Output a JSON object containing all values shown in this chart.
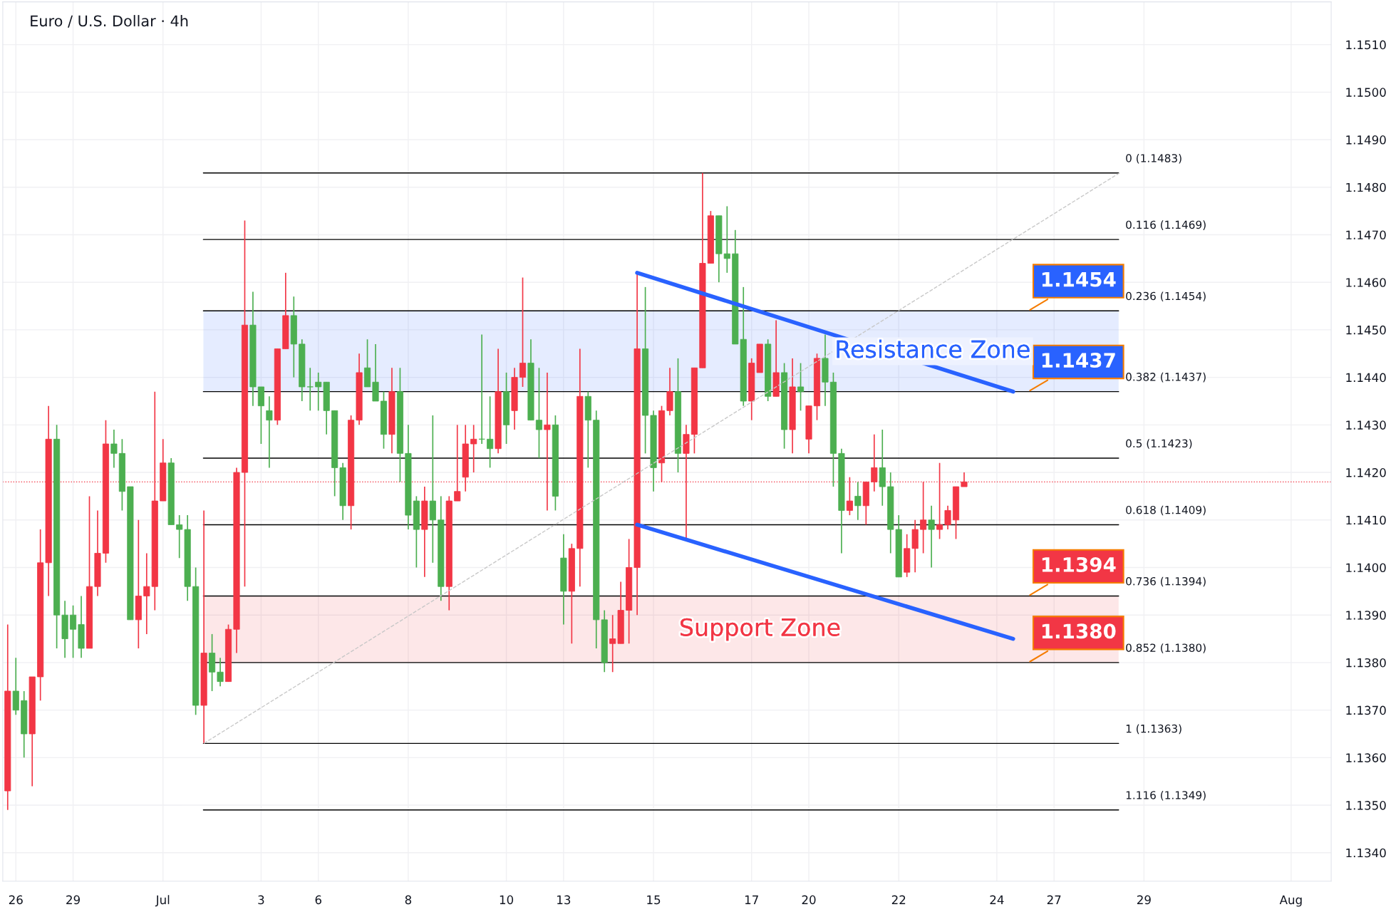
{
  "chart_data": {
    "type": "candlestick",
    "title": "Euro / U.S. Dollar · 4h",
    "categories": [
      null,
      "26",
      null,
      null,
      null,
      null,
      null,
      null,
      "29",
      null,
      null,
      null,
      null,
      null,
      null,
      null,
      null,
      null,
      null,
      "Jul",
      null,
      null,
      null,
      null,
      null,
      null,
      null,
      null,
      null,
      null,
      null,
      "3",
      null,
      null,
      null,
      null,
      null,
      null,
      "6",
      null,
      null,
      null,
      null,
      null,
      null,
      null,
      null,
      null,
      null,
      "8",
      null,
      null,
      null,
      null,
      null,
      null,
      null,
      null,
      null,
      null,
      null,
      "10",
      null,
      null,
      null,
      null,
      null,
      null,
      "13",
      null,
      null,
      null,
      null,
      null,
      null,
      null,
      null,
      null,
      null,
      "15",
      null,
      null,
      null,
      null,
      null,
      null,
      null,
      null,
      null,
      null,
      null,
      "17",
      null,
      null,
      null,
      null,
      null,
      null,
      "20",
      null,
      null,
      null,
      null,
      null,
      null,
      null,
      null,
      null,
      null,
      "22",
      null,
      null,
      null,
      null,
      null,
      null,
      null,
      null,
      null,
      null,
      null,
      "24",
      null,
      null,
      null,
      null,
      null,
      null,
      "27",
      null,
      null,
      null,
      null,
      null,
      null,
      null,
      null,
      null,
      null,
      "29",
      null,
      null,
      null,
      null,
      null,
      null,
      null,
      null,
      null,
      null,
      null,
      null,
      null,
      null,
      null,
      null,
      null,
      "Aug",
      null,
      null,
      null,
      null
    ],
    "ohlc": [
      [
        1.1353,
        1.1388,
        1.1349,
        1.1374
      ],
      [
        1.1374,
        1.1381,
        1.1369,
        1.137
      ],
      [
        1.1372,
        1.1374,
        1.136,
        1.1365
      ],
      [
        1.1365,
        1.1377,
        1.1354,
        1.1377
      ],
      [
        1.1377,
        1.1408,
        1.1372,
        1.1401
      ],
      [
        1.1401,
        1.1434,
        1.1394,
        1.1427
      ],
      [
        1.1427,
        1.143,
        1.1383,
        1.139
      ],
      [
        1.139,
        1.1393,
        1.1381,
        1.1385
      ],
      [
        1.139,
        1.1392,
        1.1381,
        1.1387
      ],
      [
        1.1388,
        1.1394,
        1.1381,
        1.1383
      ],
      [
        1.1383,
        1.1415,
        1.1383,
        1.1396
      ],
      [
        1.1396,
        1.1412,
        1.1394,
        1.1403
      ],
      [
        1.1403,
        1.1431,
        1.1401,
        1.1426
      ],
      [
        1.1426,
        1.1429,
        1.1421,
        1.1424
      ],
      [
        1.1424,
        1.1427,
        1.1412,
        1.1416
      ],
      [
        1.1417,
        1.1417,
        1.1389,
        1.1389
      ],
      [
        1.1389,
        1.141,
        1.1383,
        1.1394
      ],
      [
        1.1394,
        1.1403,
        1.1386,
        1.1396
      ],
      [
        1.1396,
        1.1437,
        1.1391,
        1.1414
      ],
      [
        1.1414,
        1.1427,
        1.1414,
        1.1422
      ],
      [
        1.1422,
        1.1423,
        1.1409,
        1.1409
      ],
      [
        1.1409,
        1.1411,
        1.1402,
        1.1408
      ],
      [
        1.1408,
        1.1411,
        1.1393,
        1.1396
      ],
      [
        1.1396,
        1.14,
        1.1369,
        1.1371
      ],
      [
        1.1371,
        1.1412,
        1.1363,
        1.1382
      ],
      [
        1.1382,
        1.1386,
        1.1374,
        1.1378
      ],
      [
        1.1378,
        1.1381,
        1.1375,
        1.1376
      ],
      [
        1.1376,
        1.1388,
        1.1376,
        1.1387
      ],
      [
        1.1387,
        1.1421,
        1.1382,
        1.142
      ],
      [
        1.142,
        1.1473,
        1.1396,
        1.1451
      ],
      [
        1.1451,
        1.1458,
        1.1434,
        1.1438
      ],
      [
        1.1438,
        1.1438,
        1.1426,
        1.1434
      ],
      [
        1.1433,
        1.1436,
        1.1421,
        1.1431
      ],
      [
        1.1431,
        1.1446,
        1.143,
        1.1446
      ],
      [
        1.1446,
        1.1462,
        1.1446,
        1.1453
      ],
      [
        1.1453,
        1.1457,
        1.144,
        1.1447
      ],
      [
        1.1447,
        1.1448,
        1.1435,
        1.1438
      ],
      [
        1.1438,
        1.1442,
        1.1433,
        1.1438
      ],
      [
        1.1439,
        1.1441,
        1.1433,
        1.1438
      ],
      [
        1.1439,
        1.1439,
        1.1428,
        1.1433
      ],
      [
        1.1433,
        1.1433,
        1.1415,
        1.1421
      ],
      [
        1.1421,
        1.1422,
        1.141,
        1.1413
      ],
      [
        1.1413,
        1.1432,
        1.1408,
        1.1431
      ],
      [
        1.1431,
        1.1445,
        1.143,
        1.1441
      ],
      [
        1.1442,
        1.1448,
        1.1438,
        1.1438
      ],
      [
        1.1439,
        1.1447,
        1.1435,
        1.1435
      ],
      [
        1.1435,
        1.1437,
        1.1425,
        1.1428
      ],
      [
        1.1428,
        1.1442,
        1.1424,
        1.1437
      ],
      [
        1.1437,
        1.1442,
        1.1418,
        1.1424
      ],
      [
        1.1424,
        1.143,
        1.1408,
        1.1411
      ],
      [
        1.1414,
        1.1415,
        1.14,
        1.1408
      ],
      [
        1.1408,
        1.1417,
        1.1398,
        1.1414
      ],
      [
        1.1414,
        1.1432,
        1.1401,
        1.141
      ],
      [
        1.141,
        1.1415,
        1.1393,
        1.1396
      ],
      [
        1.1396,
        1.1415,
        1.1391,
        1.1414
      ],
      [
        1.1414,
        1.143,
        1.1414,
        1.1416
      ],
      [
        1.1419,
        1.143,
        1.1416,
        1.1426
      ],
      [
        1.1426,
        1.143,
        1.142,
        1.1427
      ],
      [
        1.1427,
        1.1449,
        1.1426,
        1.1427
      ],
      [
        1.1427,
        1.1436,
        1.1421,
        1.1425
      ],
      [
        1.1425,
        1.1446,
        1.1424,
        1.1437
      ],
      [
        1.1437,
        1.1441,
        1.1426,
        1.143
      ],
      [
        1.1433,
        1.1442,
        1.1429,
        1.144
      ],
      [
        1.144,
        1.1461,
        1.1438,
        1.1443
      ],
      [
        1.1443,
        1.1448,
        1.1431,
        1.1431
      ],
      [
        1.1431,
        1.1442,
        1.1423,
        1.1429
      ],
      [
        1.1429,
        1.1441,
        1.1412,
        1.143
      ],
      [
        1.143,
        1.1432,
        1.1412,
        1.1415
      ],
      [
        1.1402,
        1.1407,
        1.1388,
        1.1395
      ],
      [
        1.1395,
        1.1405,
        1.1384,
        1.1404
      ],
      [
        1.1404,
        1.1446,
        1.1396,
        1.1436
      ],
      [
        1.1436,
        1.1437,
        1.1421,
        1.1431
      ],
      [
        1.1431,
        1.1433,
        1.1383,
        1.1389
      ],
      [
        1.1389,
        1.1391,
        1.1378,
        1.138
      ],
      [
        1.1384,
        1.139,
        1.1378,
        1.1385
      ],
      [
        1.1384,
        1.1397,
        1.1384,
        1.1391
      ],
      [
        1.1391,
        1.1406,
        1.1384,
        1.14
      ],
      [
        1.14,
        1.1462,
        1.139,
        1.1446
      ],
      [
        1.1446,
        1.1459,
        1.1424,
        1.1432
      ],
      [
        1.1432,
        1.1433,
        1.1416,
        1.1421
      ],
      [
        1.1422,
        1.1434,
        1.1418,
        1.1433
      ],
      [
        1.1433,
        1.1442,
        1.1432,
        1.1437
      ],
      [
        1.1437,
        1.1444,
        1.142,
        1.1424
      ],
      [
        1.1424,
        1.143,
        1.1406,
        1.1428
      ],
      [
        1.1428,
        1.1442,
        1.1424,
        1.1442
      ],
      [
        1.1442,
        1.1483,
        1.1442,
        1.1464
      ],
      [
        1.1464,
        1.1475,
        1.1464,
        1.1474
      ],
      [
        1.1474,
        1.1474,
        1.146,
        1.1466
      ],
      [
        1.1466,
        1.1476,
        1.1462,
        1.1465
      ],
      [
        1.1466,
        1.1471,
        1.1447,
        1.1447
      ],
      [
        1.1448,
        1.1459,
        1.1434,
        1.1435
      ],
      [
        1.1435,
        1.1444,
        1.1431,
        1.1443
      ],
      [
        1.1441,
        1.1447,
        1.1441,
        1.1447
      ],
      [
        1.1447,
        1.1448,
        1.1435,
        1.1436
      ],
      [
        1.1436,
        1.1452,
        1.1436,
        1.1441
      ],
      [
        1.1441,
        1.1443,
        1.1425,
        1.1429
      ],
      [
        1.1429,
        1.1444,
        1.1424,
        1.1438
      ],
      [
        1.1438,
        1.1443,
        1.1433,
        1.1437
      ],
      [
        1.1427,
        1.1434,
        1.1424,
        1.1434
      ],
      [
        1.1434,
        1.1445,
        1.1431,
        1.1444
      ],
      [
        1.1444,
        1.1449,
        1.1434,
        1.1439
      ],
      [
        1.1439,
        1.1441,
        1.1417,
        1.1424
      ],
      [
        1.1424,
        1.1425,
        1.1403,
        1.1412
      ],
      [
        1.1412,
        1.1419,
        1.1411,
        1.1414
      ],
      [
        1.1415,
        1.1418,
        1.141,
        1.1413
      ],
      [
        1.1413,
        1.1418,
        1.1409,
        1.1418
      ],
      [
        1.1418,
        1.1428,
        1.1416,
        1.1421
      ],
      [
        1.1421,
        1.1429,
        1.1413,
        1.1417
      ],
      [
        1.1417,
        1.142,
        1.1403,
        1.1408
      ],
      [
        1.1408,
        1.1411,
        1.1398,
        1.1398
      ],
      [
        1.1399,
        1.1407,
        1.1398,
        1.1404
      ],
      [
        1.1404,
        1.141,
        1.1399,
        1.1408
      ],
      [
        1.1408,
        1.1418,
        1.1403,
        1.141
      ],
      [
        1.141,
        1.1413,
        1.14,
        1.1408
      ],
      [
        1.1408,
        1.1422,
        1.1406,
        1.1409
      ],
      [
        1.1409,
        1.1413,
        1.1408,
        1.1412
      ],
      [
        1.141,
        1.1417,
        1.1406,
        1.1417
      ],
      [
        1.1417,
        1.142,
        1.1417,
        1.1418
      ],
      null,
      null,
      null,
      null,
      null,
      null,
      null,
      null,
      null,
      null,
      null,
      null,
      null,
      null,
      null,
      null,
      null,
      null,
      null,
      null,
      null,
      null,
      null,
      null,
      null,
      null,
      null,
      null,
      null,
      null,
      null,
      null,
      null,
      null,
      null,
      null,
      null,
      null,
      null,
      null,
      null,
      null,
      null,
      null
    ],
    "colors": [
      "#f23645",
      "#4caf50",
      "#4caf50",
      "#f23645",
      "#f23645",
      "#f23645",
      "#4caf50",
      "#4caf50",
      "#4caf50",
      "#4caf50",
      "#f23645",
      "#f23645",
      "#f23645",
      "#4caf50",
      "#4caf50",
      "#4caf50",
      "#f23645",
      "#f23645",
      "#f23645",
      "#f23645",
      "#4caf50",
      "#4caf50",
      "#4caf50",
      "#4caf50",
      "#f23645",
      "#4caf50",
      "#4caf50",
      "#f23645",
      "#f23645",
      "#f23645",
      "#4caf50",
      "#4caf50",
      "#4caf50",
      "#f23645",
      "#f23645",
      "#4caf50",
      "#4caf50",
      "#4caf50",
      "#4caf50",
      "#4caf50",
      "#4caf50",
      "#4caf50",
      "#f23645",
      "#f23645",
      "#4caf50",
      "#4caf50",
      "#4caf50",
      "#f23645",
      "#4caf50",
      "#4caf50",
      "#4caf50",
      "#f23645",
      "#4caf50",
      "#4caf50",
      "#f23645",
      "#f23645",
      "#f23645",
      "#f23645",
      "#4caf50",
      "#4caf50",
      "#f23645",
      "#4caf50",
      "#f23645",
      "#f23645",
      "#4caf50",
      "#4caf50",
      "#f23645",
      "#4caf50",
      "#4caf50",
      "#f23645",
      "#f23645",
      "#4caf50",
      "#4caf50",
      "#4caf50",
      "#f23645",
      "#f23645",
      "#f23645",
      "#f23645",
      "#4caf50",
      "#4caf50",
      "#f23645",
      "#f23645",
      "#4caf50",
      "#f23645",
      "#f23645",
      "#f23645",
      "#f23645",
      "#4caf50",
      "#4caf50",
      "#4caf50",
      "#4caf50",
      "#f23645",
      "#f23645",
      "#4caf50",
      "#f23645",
      "#4caf50",
      "#f23645",
      "#4caf50",
      "#f23645",
      "#f23645",
      "#4caf50",
      "#4caf50",
      "#4caf50",
      "#f23645",
      "#4caf50",
      "#f23645",
      "#f23645",
      "#4caf50",
      "#4caf50",
      "#4caf50",
      "#f23645",
      "#f23645",
      "#f23645",
      "#4caf50",
      "#f23645",
      "#f23645",
      "#f23645",
      "#f23645",
      null,
      null,
      null,
      null,
      null,
      null,
      null,
      null,
      null,
      null,
      null,
      null,
      null,
      null,
      null,
      null,
      null,
      null,
      null,
      null,
      null,
      null,
      null,
      null,
      null,
      null,
      null,
      null,
      null,
      null,
      null,
      null,
      null,
      null,
      null,
      null,
      null,
      null,
      null,
      null,
      null,
      null,
      null,
      null
    ],
    "ylim": [
      1.1334,
      1.1519
    ],
    "yticks": [
      {
        "value": 1.134,
        "label": "1.1340"
      },
      {
        "value": 1.135,
        "label": "1.1350"
      },
      {
        "value": 1.136,
        "label": "1.1360"
      },
      {
        "value": 1.137,
        "label": "1.1370"
      },
      {
        "value": 1.138,
        "label": "1.1380"
      },
      {
        "value": 1.139,
        "label": "1.1390"
      },
      {
        "value": 1.14,
        "label": "1.1400"
      },
      {
        "value": 1.141,
        "label": "1.1410"
      },
      {
        "value": 1.142,
        "label": "1.1420"
      },
      {
        "value": 1.143,
        "label": "1.1430"
      },
      {
        "value": 1.144,
        "label": "1.1440"
      },
      {
        "value": 1.145,
        "label": "1.1450"
      },
      {
        "value": 1.146,
        "label": "1.1460"
      },
      {
        "value": 1.147,
        "label": "1.1470"
      },
      {
        "value": 1.148,
        "label": "1.1480"
      },
      {
        "value": 1.149,
        "label": "1.1490"
      },
      {
        "value": 1.15,
        "label": "1.1500"
      },
      {
        "value": 1.151,
        "label": "1.1510"
      }
    ],
    "grid": true,
    "series": [
      {
        "type": "line",
        "color": "#2962ff",
        "line_style": "solid",
        "values": [
          null,
          null,
          null,
          null,
          null,
          null,
          null,
          null,
          null,
          null,
          null,
          null,
          null,
          null,
          null,
          null,
          null,
          null,
          null,
          null,
          null,
          null,
          null,
          null,
          null,
          null,
          null,
          null,
          null,
          null,
          null,
          null,
          null,
          null,
          null,
          null,
          null,
          null,
          null,
          null,
          null,
          null,
          null,
          null,
          null,
          null,
          null,
          null,
          null,
          null,
          null,
          null,
          null,
          null,
          null,
          null,
          null,
          null,
          null,
          null,
          null,
          null,
          null,
          null,
          null,
          null,
          null,
          null,
          null,
          null,
          null,
          null,
          null,
          null,
          null,
          null,
          null,
          1.1462,
          null,
          null,
          null,
          null,
          null,
          null,
          null,
          null,
          null,
          null,
          null,
          null,
          null,
          null,
          null,
          null,
          null,
          null,
          null,
          null,
          null,
          null,
          null,
          null,
          null,
          null,
          null,
          null,
          null,
          null,
          null,
          null,
          null,
          null,
          null,
          null,
          null,
          null,
          null,
          null,
          null,
          null,
          null,
          null,
          null,
          1.1437,
          null,
          null,
          null,
          null,
          null,
          null,
          null,
          null,
          null,
          null,
          null,
          null,
          null,
          null,
          null,
          null,
          null,
          null,
          null,
          null,
          null,
          null,
          null,
          null,
          null,
          null,
          null,
          null,
          null,
          null,
          null,
          null,
          null,
          null,
          null,
          null,
          null,
          null
        ]
      },
      {
        "type": "line",
        "color": "#2962ff",
        "line_style": "solid",
        "values": [
          null,
          null,
          null,
          null,
          null,
          null,
          null,
          null,
          null,
          null,
          null,
          null,
          null,
          null,
          null,
          null,
          null,
          null,
          null,
          null,
          null,
          null,
          null,
          null,
          null,
          null,
          null,
          null,
          null,
          null,
          null,
          null,
          null,
          null,
          null,
          null,
          null,
          null,
          null,
          null,
          null,
          null,
          null,
          null,
          null,
          null,
          null,
          null,
          null,
          null,
          null,
          null,
          null,
          null,
          null,
          null,
          null,
          null,
          null,
          null,
          null,
          null,
          null,
          null,
          null,
          null,
          null,
          null,
          null,
          null,
          null,
          null,
          null,
          null,
          null,
          null,
          null,
          1.1409,
          null,
          null,
          null,
          null,
          null,
          null,
          null,
          null,
          null,
          null,
          null,
          null,
          null,
          null,
          null,
          null,
          null,
          null,
          null,
          null,
          null,
          null,
          null,
          null,
          null,
          null,
          null,
          null,
          null,
          null,
          null,
          null,
          null,
          null,
          null,
          null,
          null,
          null,
          null,
          null,
          null,
          null,
          null,
          null,
          null,
          1.1385,
          null,
          null,
          null,
          null,
          null,
          null,
          null,
          null,
          null,
          null,
          null,
          null,
          null,
          null,
          null,
          null,
          null,
          null,
          null,
          null,
          null,
          null,
          null,
          null,
          null,
          null,
          null,
          null,
          null,
          null,
          null,
          null,
          null,
          null,
          null,
          null,
          null,
          null
        ]
      },
      {
        "type": "line",
        "color": "#c8c8c8",
        "line_style": "dashed",
        "values": [
          null,
          null,
          null,
          null,
          null,
          null,
          null,
          null,
          null,
          null,
          null,
          null,
          null,
          null,
          null,
          null,
          null,
          null,
          null,
          null,
          null,
          null,
          null,
          null,
          1.1363,
          null,
          null,
          null,
          null,
          null,
          null,
          null,
          null,
          null,
          null,
          null,
          null,
          null,
          null,
          null,
          null,
          null,
          null,
          null,
          null,
          null,
          null,
          null,
          null,
          null,
          null,
          null,
          null,
          null,
          null,
          null,
          null,
          null,
          null,
          null,
          null,
          null,
          null,
          null,
          null,
          null,
          null,
          null,
          null,
          null,
          null,
          null,
          null,
          null,
          null,
          null,
          null,
          null,
          null,
          null,
          null,
          null,
          null,
          null,
          null,
          null,
          null,
          null,
          null,
          null,
          null,
          null,
          null,
          null,
          null,
          null,
          null,
          null,
          null,
          null,
          null,
          null,
          null,
          null,
          null,
          null,
          null,
          null,
          null,
          null,
          null,
          null,
          null,
          null,
          null,
          null,
          null,
          null,
          null,
          null,
          null,
          null,
          null,
          null,
          null,
          null,
          null,
          null,
          null,
          null,
          null,
          null,
          null,
          null,
          null,
          null,
          1.1483,
          null,
          null,
          null,
          null,
          null,
          null,
          null,
          null,
          null,
          null,
          null,
          null,
          null,
          null,
          null,
          null,
          null,
          null,
          null,
          null,
          null,
          null,
          null,
          null,
          null
        ]
      }
    ],
    "bands": [
      {
        "axis": "y",
        "from": 1.1437,
        "to": 1.1454,
        "label": "Resistance Zone",
        "color": "#2962ff"
      },
      {
        "axis": "y",
        "from": 1.138,
        "to": 1.1394,
        "label": "Support Zone",
        "color": "#f23645"
      }
    ],
    "ref_lines": [
      {
        "axis": "y",
        "value": 1.1483,
        "label": "0 (1.1483)",
        "color": "#000000"
      },
      {
        "axis": "y",
        "value": 1.1469,
        "label": "0.116 (1.1469)",
        "color": "#000000"
      },
      {
        "axis": "y",
        "value": 1.1454,
        "label": "0.236 (1.1454)",
        "color": "#000000"
      },
      {
        "axis": "y",
        "value": 1.1437,
        "label": "0.382 (1.1437)",
        "color": "#000000"
      },
      {
        "axis": "y",
        "value": 1.1423,
        "label": "0.5 (1.1423)",
        "color": "#000000"
      },
      {
        "axis": "y",
        "value": 1.1409,
        "label": "0.618 (1.1409)",
        "color": "#000000"
      },
      {
        "axis": "y",
        "value": 1.1394,
        "label": "0.736 (1.1394)",
        "color": "#000000"
      },
      {
        "axis": "y",
        "value": 1.138,
        "label": "0.852 (1.1380)",
        "color": "#000000"
      },
      {
        "axis": "y",
        "value": 1.1363,
        "label": "1 (1.1363)",
        "color": "#000000"
      },
      {
        "axis": "y",
        "value": 1.1349,
        "label": "1.116 (1.1349)",
        "color": "#000000"
      },
      {
        "axis": "y",
        "value": 1.1418,
        "color": "#f23645",
        "line_style": "dotted"
      }
    ],
    "annotations": [
      {
        "text": "1.1454",
        "y": 1.1454
      },
      {
        "text": "1.1437",
        "y": 1.1437
      },
      {
        "text": "1.1394",
        "y": 1.1394
      },
      {
        "text": "1.1380",
        "y": 1.138
      }
    ]
  }
}
